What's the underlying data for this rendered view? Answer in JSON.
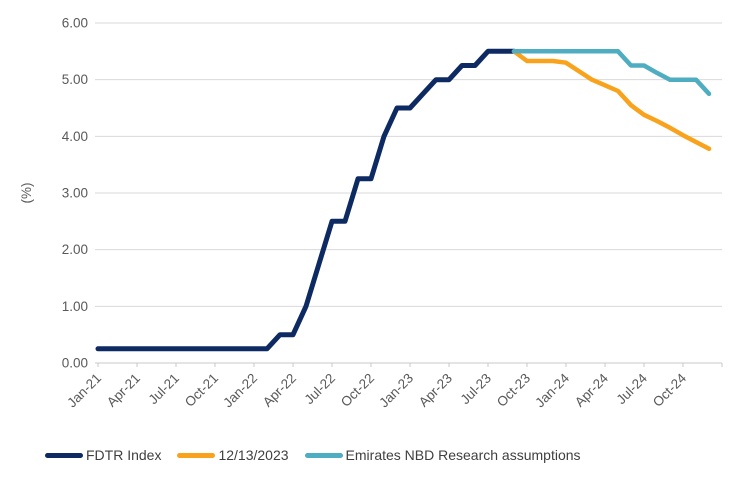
{
  "chart_data": {
    "type": "line",
    "title": "",
    "ylabel": "(%)",
    "ylim": [
      0,
      6
    ],
    "grid": true,
    "legend_position": "bottom",
    "axis_text_color": "#595959",
    "gridline_color": "#d9d9d9",
    "axis_line_color": "#c9c9c9",
    "ytick_labels": [
      "0.00",
      "1.00",
      "2.00",
      "3.00",
      "4.00",
      "5.00",
      "6.00"
    ],
    "xtick_labels": [
      "Jan-21",
      "Apr-21",
      "Jul-21",
      "Oct-21",
      "Jan-22",
      "Apr-22",
      "Jul-22",
      "Oct-22",
      "Jan-23",
      "Apr-23",
      "Jul-23",
      "Oct-23",
      "Jan-24",
      "Apr-24",
      "Jul-24",
      "Oct-24"
    ],
    "x_months": [
      "Jan-21",
      "Feb-21",
      "Mar-21",
      "Apr-21",
      "May-21",
      "Jun-21",
      "Jul-21",
      "Aug-21",
      "Sep-21",
      "Oct-21",
      "Nov-21",
      "Dec-21",
      "Jan-22",
      "Feb-22",
      "Mar-22",
      "Apr-22",
      "May-22",
      "Jun-22",
      "Jul-22",
      "Aug-22",
      "Sep-22",
      "Oct-22",
      "Nov-22",
      "Dec-22",
      "Jan-23",
      "Feb-23",
      "Mar-23",
      "Apr-23",
      "May-23",
      "Jun-23",
      "Jul-23",
      "Aug-23",
      "Sep-23",
      "Oct-23",
      "Nov-23",
      "Dec-23",
      "Jan-24",
      "Feb-24",
      "Mar-24",
      "Apr-24",
      "May-24",
      "Jun-24",
      "Jul-24",
      "Aug-24",
      "Sep-24",
      "Oct-24",
      "Nov-24",
      "Dec-24"
    ],
    "series": [
      {
        "name": "FDTR Index",
        "color": "#0e2a63",
        "values": [
          0.25,
          0.25,
          0.25,
          0.25,
          0.25,
          0.25,
          0.25,
          0.25,
          0.25,
          0.25,
          0.25,
          0.25,
          0.25,
          0.25,
          0.5,
          0.5,
          1.0,
          1.75,
          2.5,
          2.5,
          3.25,
          3.25,
          4.0,
          4.5,
          4.5,
          4.75,
          5.0,
          5.0,
          5.25,
          5.25,
          5.5,
          5.5,
          5.5,
          null,
          null,
          null,
          null,
          null,
          null,
          null,
          null,
          null,
          null,
          null,
          null,
          null,
          null,
          null
        ]
      },
      {
        "name": "12/13/2023",
        "color": "#f9a21b",
        "values": [
          null,
          null,
          null,
          null,
          null,
          null,
          null,
          null,
          null,
          null,
          null,
          null,
          null,
          null,
          null,
          null,
          null,
          null,
          null,
          null,
          null,
          null,
          null,
          null,
          null,
          null,
          null,
          null,
          null,
          null,
          null,
          null,
          5.5,
          5.33,
          5.33,
          5.33,
          5.3,
          5.15,
          5.0,
          4.9,
          4.8,
          4.55,
          4.38,
          4.27,
          4.15,
          4.02,
          3.9,
          3.78
        ]
      },
      {
        "name": "Emirates NBD Research assumptions",
        "color": "#4fadc1",
        "values": [
          null,
          null,
          null,
          null,
          null,
          null,
          null,
          null,
          null,
          null,
          null,
          null,
          null,
          null,
          null,
          null,
          null,
          null,
          null,
          null,
          null,
          null,
          null,
          null,
          null,
          null,
          null,
          null,
          null,
          null,
          null,
          null,
          5.5,
          5.5,
          5.5,
          5.5,
          5.5,
          5.5,
          5.5,
          5.5,
          5.5,
          5.25,
          5.25,
          5.12,
          5.0,
          5.0,
          5.0,
          4.75
        ]
      }
    ]
  }
}
